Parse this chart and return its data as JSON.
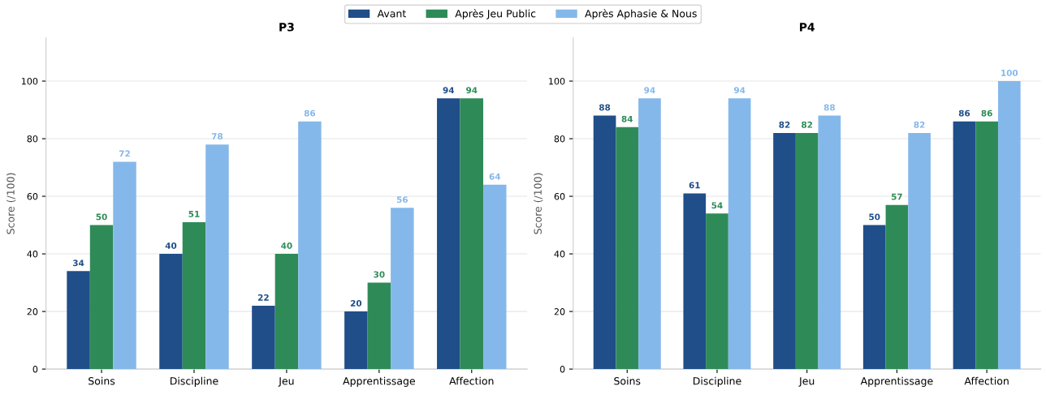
{
  "chart_data": [
    {
      "type": "bar",
      "title": "P3",
      "ylabel": "Score (/100)",
      "categories": [
        "Soins",
        "Discipline",
        "Jeu",
        "Apprentissage",
        "Affection"
      ],
      "series": [
        {
          "name": "Avant",
          "color": "#1f4e89",
          "values": [
            34,
            40,
            22,
            20,
            94
          ]
        },
        {
          "name": "Après Jeu Public",
          "color": "#2e8b57",
          "values": [
            50,
            51,
            40,
            30,
            94
          ]
        },
        {
          "name": "Après Aphasie & Nous",
          "color": "#85b8ea",
          "values": [
            72,
            78,
            86,
            56,
            64
          ]
        }
      ],
      "ylim": [
        0,
        115
      ],
      "yticks": [
        0,
        20,
        40,
        60,
        80,
        100
      ],
      "grid": "y",
      "legend": "top",
      "data_labels": true
    },
    {
      "type": "bar",
      "title": "P4",
      "ylabel": "Score (/100)",
      "categories": [
        "Soins",
        "Discipline",
        "Jeu",
        "Apprentissage",
        "Affection"
      ],
      "series": [
        {
          "name": "Avant",
          "color": "#1f4e89",
          "values": [
            88,
            61,
            82,
            50,
            86
          ]
        },
        {
          "name": "Après Jeu Public",
          "color": "#2e8b57",
          "values": [
            84,
            54,
            82,
            57,
            86
          ]
        },
        {
          "name": "Après Aphasie & Nous",
          "color": "#85b8ea",
          "values": [
            94,
            94,
            88,
            82,
            100
          ]
        }
      ],
      "ylim": [
        0,
        115
      ],
      "yticks": [
        0,
        20,
        40,
        60,
        80,
        100
      ],
      "grid": "y",
      "legend": "top",
      "data_labels": true
    }
  ]
}
